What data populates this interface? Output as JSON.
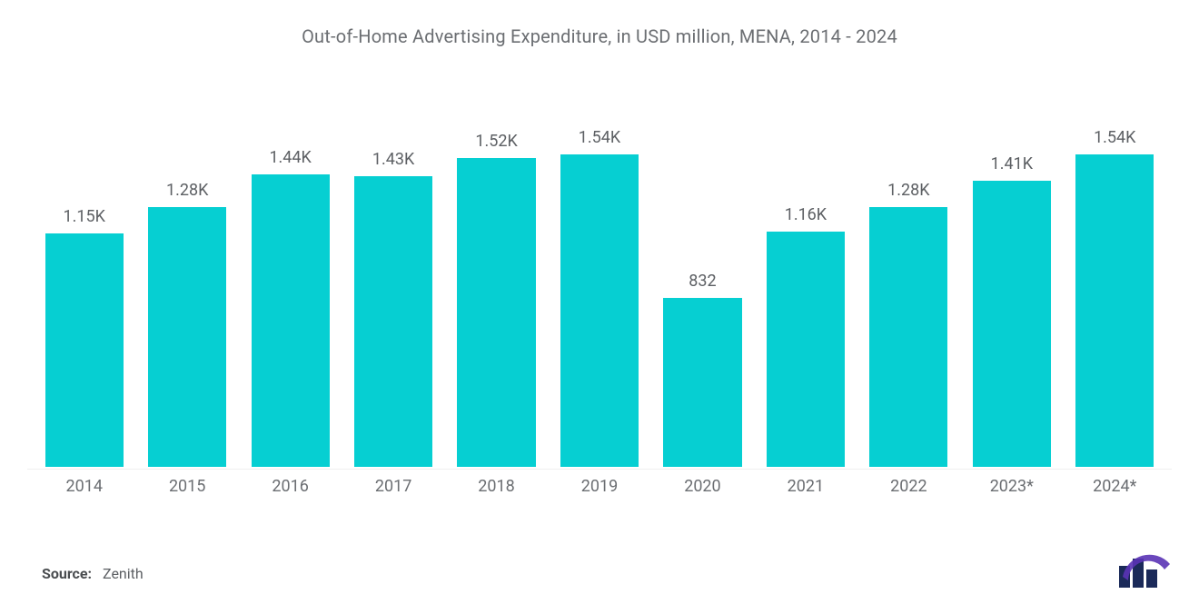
{
  "chart": {
    "type": "bar",
    "title": "Out-of-Home Advertising Expenditure, in USD million, MENA, 2014 - 2024",
    "title_color": "#6b6e72",
    "title_fontsize": 20,
    "background_color": "#ffffff",
    "bar_color": "#06cfd2",
    "bar_width_pct": 76,
    "value_label_color": "#5d6064",
    "value_label_fontsize": 18,
    "x_label_color": "#6b6e72",
    "x_label_fontsize": 18,
    "y_max": 1700,
    "categories": [
      "2014",
      "2015",
      "2016",
      "2017",
      "2018",
      "2019",
      "2020",
      "2021",
      "2022",
      "2023*",
      "2024*"
    ],
    "values": [
      1150,
      1280,
      1440,
      1430,
      1520,
      1540,
      832,
      1160,
      1280,
      1410,
      1540
    ],
    "value_labels": [
      "1.15K",
      "1.28K",
      "1.44K",
      "1.43K",
      "1.52K",
      "1.54K",
      "832",
      "1.16K",
      "1.28K",
      "1.41K",
      "1.54K"
    ]
  },
  "source": {
    "label": "Source:",
    "value": "Zenith"
  },
  "logo": {
    "bars_color": "#1b2a59",
    "arc_color": "#5a33b5"
  }
}
